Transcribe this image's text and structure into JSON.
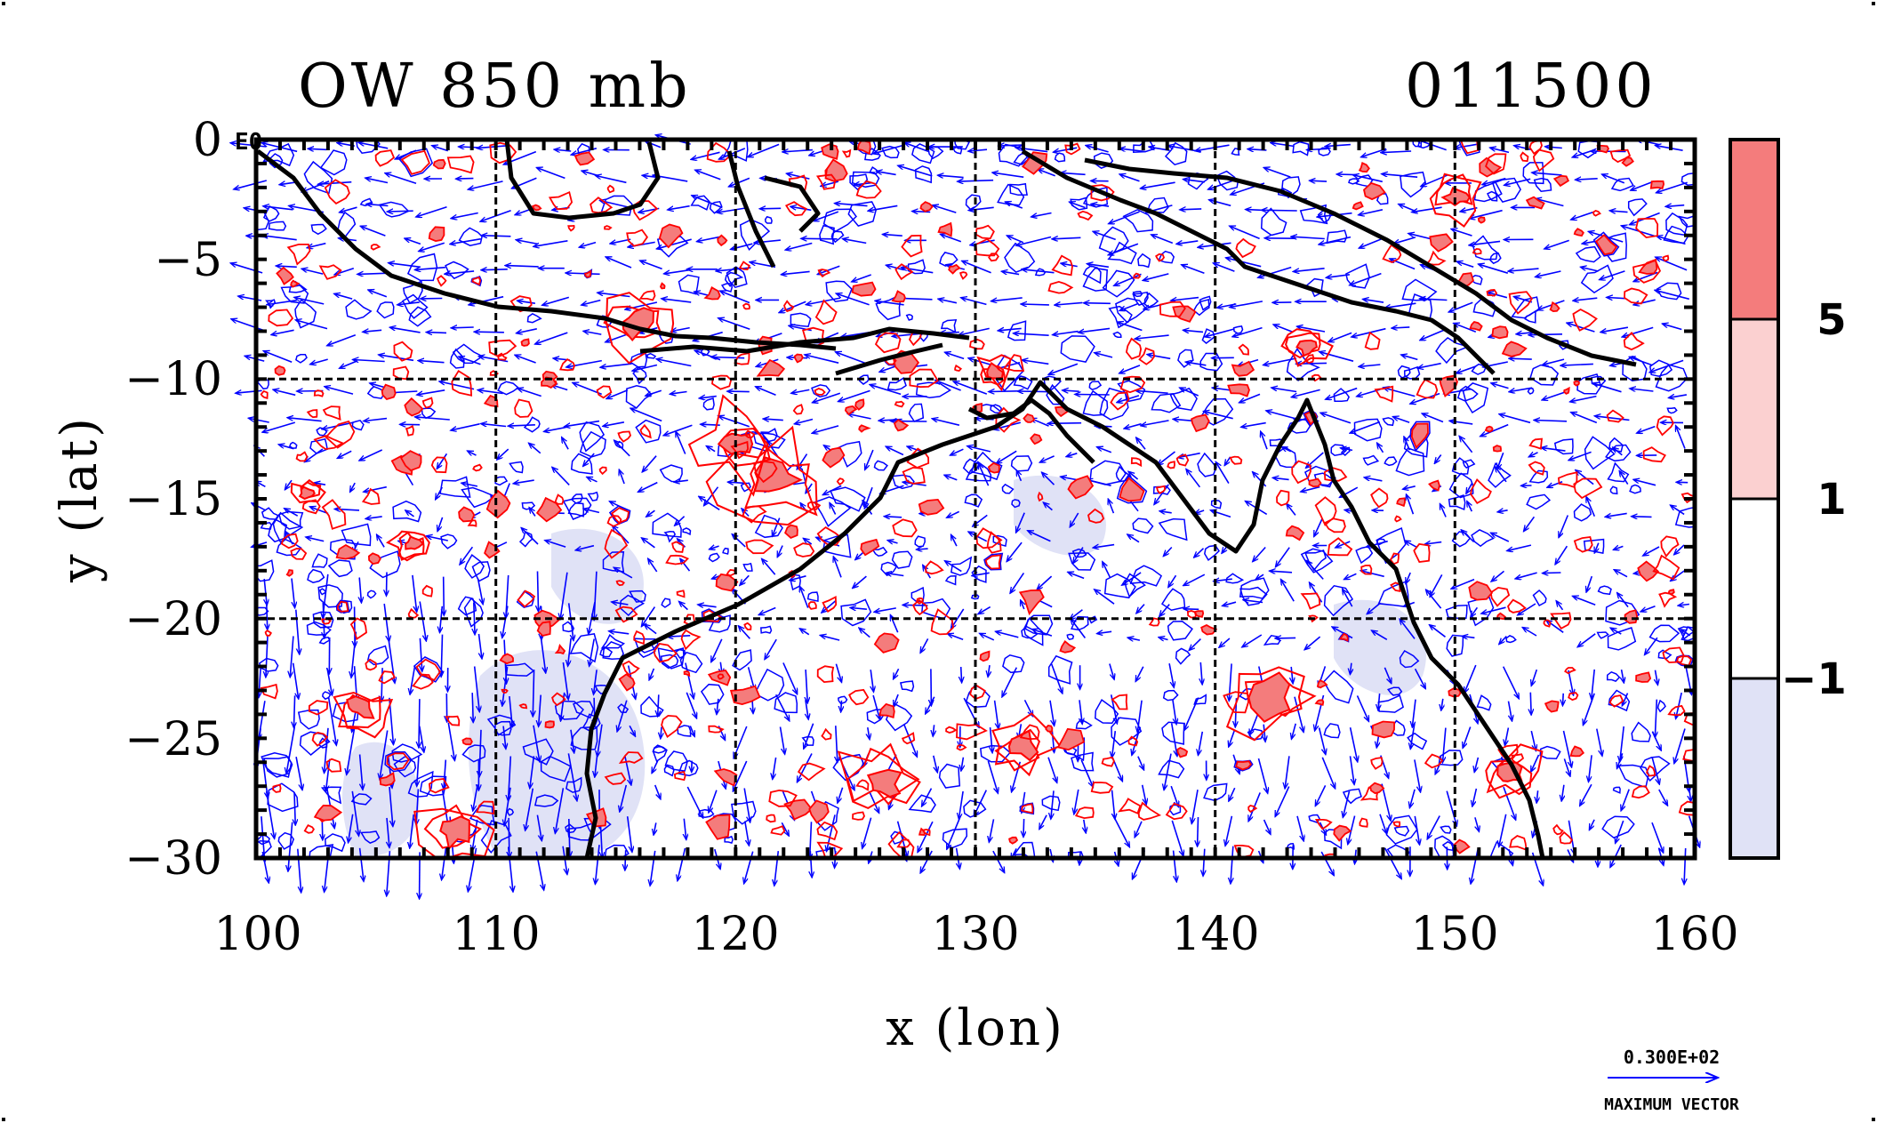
{
  "chart_data": {
    "type": "map",
    "title": "OW 850 mb",
    "time_label": "011500",
    "xlabel": "x (lon)",
    "ylabel": "y (lat)",
    "xlim": [
      100,
      160
    ],
    "ylim": [
      -30,
      0
    ],
    "x_ticks": [
      "100",
      "110",
      "120",
      "130",
      "140",
      "150",
      "160"
    ],
    "y_ticks": [
      "0",
      "−5",
      "−10",
      "−15",
      "−20",
      "−25",
      "−30"
    ],
    "corner_label": "E0",
    "grid_lon": [
      110,
      120,
      130,
      140,
      150
    ],
    "grid_lat": [
      -10,
      -20
    ],
    "colorbar": {
      "labels": [
        "5",
        "1",
        "−1"
      ],
      "colors": [
        "#f47c7c",
        "#fbd0d0",
        "#ffffff",
        "#e0e2f6"
      ]
    },
    "contour_colors": {
      "positive": "#ff0000",
      "negative": "#0000ff"
    },
    "vector_color": "#0000ff",
    "reference_vector": {
      "value": "0.300E+02",
      "caption": "MAXIMUM VECTOR"
    },
    "coastline_color": "#000000"
  }
}
